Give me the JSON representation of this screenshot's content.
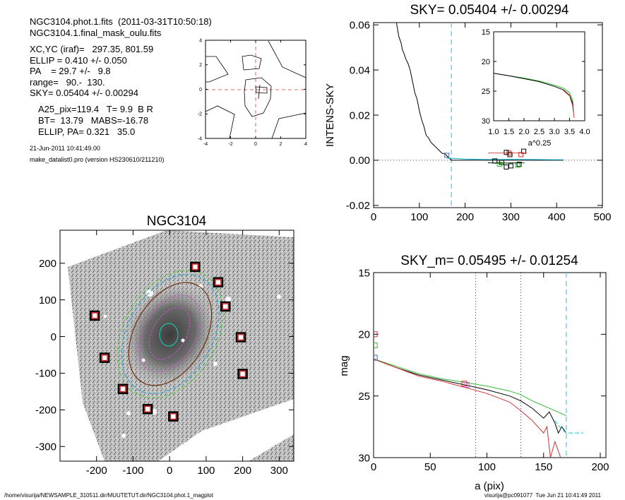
{
  "header": {
    "file_line": "NGC3104.phot.1.fits  (2011-03-31T10:50:18)",
    "mask_line": "NGC3104.1.final_mask_oulu.fits",
    "xcyc": "XC,YC (iraf)=   297.35, 801.59",
    "ellip": "ELLIP = 0.410 +/- 0.050",
    "pa": "PA    = 29.7 +/-   9.8",
    "range": "range=   90.-  130.",
    "sky": "SKY= 0.05404 +/- 0.00294",
    "a25": "A25_pix=119.4   T= 9.9  B R",
    "bt": "BT=  13.79   MABS=-16.78",
    "ellip_pa": "ELLIP, PA= 0.321   35.0",
    "date": "21-Jun-2011 10:41:49.00",
    "program": "make_datalist0.pro (version HS230610/211210)"
  },
  "footer": {
    "path": "/home/visurija/NEWSAMPLE_310511.dir/MUUTETUT.dir/NGC3104.phot.1_magplot",
    "user": "visurija@pc091077  Tue Jun 21 10:41:49 2011"
  },
  "chart_data": [
    {
      "id": "center-contour",
      "type": "line",
      "title": "",
      "xlim": [
        -4,
        4
      ],
      "ylim": [
        -4,
        4
      ],
      "xticks": [
        "-4",
        "-2",
        "0",
        "2",
        "4"
      ],
      "yticks": [
        "-4",
        "-2",
        "0",
        "2",
        "4"
      ],
      "marker": [
        0,
        0
      ],
      "colors": {
        "contour": "#000000",
        "crosshair": "#e06666"
      }
    },
    {
      "id": "sky-profile",
      "type": "line",
      "title": "SKY= 0.05404 +/- 0.00294",
      "xlabel": "",
      "ylabel": "INTENS-SKY",
      "xlim": [
        0,
        500
      ],
      "ylim": [
        -0.021,
        0.061
      ],
      "xticks": [
        "0",
        "100",
        "200",
        "300",
        "400",
        "500"
      ],
      "yticks": [
        "-0.02",
        "0.00",
        "0.02",
        "0.04",
        "0.06"
      ],
      "vline_x": 170,
      "series": [
        {
          "color": "#000000",
          "x": [
            50,
            55,
            60,
            63,
            67,
            70,
            75,
            80,
            85,
            90,
            95,
            100,
            105,
            110,
            115,
            120,
            125,
            130,
            135,
            140,
            145,
            150,
            155,
            160,
            165,
            170,
            200,
            250,
            300,
            350,
            400,
            415
          ],
          "y": [
            0.061,
            0.055,
            0.052,
            0.049,
            0.047,
            0.045,
            0.043,
            0.04,
            0.035,
            0.03,
            0.027,
            0.022,
            0.018,
            0.015,
            0.011,
            0.01,
            0.008,
            0.007,
            0.006,
            0.005,
            0.004,
            0.003,
            0.003,
            0.002,
            0.001,
            0.0,
            0.0,
            0.0,
            0.0,
            0.0,
            0.0,
            0.0
          ]
        },
        {
          "color": "#00aacc",
          "x": [
            160,
            200,
            250,
            300,
            350,
            400,
            415
          ],
          "y": [
            0.001,
            0.0005,
            0.0003,
            0.0004,
            0.0003,
            0.0002,
            0.0002
          ]
        },
        {
          "color": "#33bb33",
          "x": [
            250,
            275,
            300,
            325
          ],
          "y": [
            -0.001,
            -0.0015,
            -0.0012,
            -0.001
          ]
        }
      ],
      "squares": {
        "black": [
          [
            290,
            0.0035
          ],
          [
            298,
            0.0025
          ],
          [
            328,
            0.004
          ],
          [
            265,
            -0.0003
          ],
          [
            280,
            -0.001
          ],
          [
            300,
            -0.0025
          ],
          [
            318,
            -0.0018
          ],
          [
            290,
            -0.003
          ]
        ],
        "red": [
          [
            296,
            0.0032
          ],
          [
            322,
            0.0025
          ]
        ],
        "green": [
          [
            275,
            -0.0018
          ],
          [
            315,
            -0.0022
          ]
        ],
        "blue": [
          [
            160,
            0.0022
          ]
        ]
      },
      "inset": {
        "xlabel": "a^0.25",
        "xlim": [
          1.0,
          4.0
        ],
        "ylim": [
          15,
          30
        ],
        "xticks": [
          "1.0",
          "1.5",
          "2.0",
          "2.5",
          "3.0",
          "3.5",
          "4.0"
        ],
        "yticks": [
          "15",
          "20",
          "25",
          "30"
        ],
        "series": [
          {
            "color": "#33bb33",
            "x": [
              1.0,
              1.5,
              2.0,
              2.5,
              3.0,
              3.3,
              3.5,
              3.6,
              3.62
            ],
            "y": [
              22.0,
              22.4,
              22.8,
              23.3,
              24.0,
              24.5,
              25.3,
              26.5,
              28.0
            ]
          },
          {
            "color": "#000000",
            "x": [
              1.0,
              1.5,
              2.0,
              2.5,
              3.0,
              3.3,
              3.5,
              3.6,
              3.63
            ],
            "y": [
              22.0,
              22.4,
              22.9,
              23.4,
              24.2,
              24.8,
              25.7,
              27.0,
              28.5
            ]
          },
          {
            "color": "#cc3333",
            "x": [
              3.3,
              3.5,
              3.6,
              3.65
            ],
            "y": [
              24.9,
              25.8,
              27.4,
              29.5
            ]
          }
        ]
      }
    },
    {
      "id": "galaxy-image",
      "type": "scatter",
      "title": "NGC3104",
      "xlim": [
        -300,
        340
      ],
      "ylim": [
        -340,
        290
      ],
      "xticks": [
        "-200",
        "-100",
        "0",
        "100",
        "200",
        "300"
      ],
      "yticks": [
        "-300",
        "-200",
        "-100",
        "0",
        "100",
        "200"
      ],
      "masked_stars": [
        [
          70,
          190
        ],
        [
          133,
          148
        ],
        [
          153,
          82
        ],
        [
          195,
          -2
        ],
        [
          200,
          -102
        ],
        [
          -205,
          57
        ],
        [
          -178,
          -58
        ],
        [
          -128,
          -143
        ],
        [
          -60,
          -198
        ],
        [
          10,
          -218
        ]
      ]
    },
    {
      "id": "mag-profile",
      "type": "line",
      "title": "SKY_m=  0.05495 +/- 0.01254",
      "xlabel": "a (pix)",
      "ylabel": "mag",
      "xlim": [
        0,
        205
      ],
      "ylim": [
        15,
        30
      ],
      "xticks": [
        "0",
        "50",
        "100",
        "150",
        "200"
      ],
      "yticks": [
        "15",
        "20",
        "25",
        "30"
      ],
      "vlines": [
        90,
        130
      ],
      "cyan_vline": 170,
      "series": [
        {
          "color": "#33bb33",
          "x": [
            0,
            20,
            40,
            60,
            80,
            100,
            120,
            130,
            140,
            150,
            155,
            160,
            165,
            170
          ],
          "y": [
            22.0,
            22.6,
            23.2,
            23.6,
            23.9,
            24.2,
            24.6,
            24.9,
            25.4,
            25.8,
            26.0,
            26.2,
            26.4,
            26.6
          ]
        },
        {
          "color": "#000000",
          "x": [
            0,
            20,
            40,
            60,
            80,
            100,
            120,
            130,
            140,
            150,
            155,
            160,
            163,
            166,
            170
          ],
          "y": [
            22.0,
            22.7,
            23.3,
            23.7,
            24.1,
            24.5,
            25.0,
            25.4,
            26.0,
            26.8,
            26.3,
            27.2,
            28.0,
            27.5,
            28.0
          ]
        },
        {
          "color": "#cc3333",
          "x": [
            0,
            20,
            40,
            60,
            80,
            100,
            120,
            130,
            140,
            150,
            153,
            156,
            160,
            165
          ],
          "y": [
            22.0,
            22.7,
            23.4,
            23.8,
            24.3,
            24.8,
            25.5,
            26.2,
            27.0,
            28.0,
            27.5,
            30.0,
            28.7,
            30.0
          ]
        },
        {
          "color": "#00cccc",
          "x": [
            160,
            165,
            170,
            175,
            180,
            185
          ],
          "y": [
            27.0,
            27.6,
            28.0,
            28.0,
            28.0,
            28.0
          ]
        }
      ],
      "squares": {
        "red": [
          [
            1,
            20.0
          ],
          [
            80,
            24.0
          ]
        ],
        "green": [
          [
            1,
            20.9
          ]
        ],
        "blue": [
          [
            1,
            21.9
          ]
        ],
        "magenta": [
          [
            82,
            24.1
          ]
        ]
      }
    }
  ]
}
